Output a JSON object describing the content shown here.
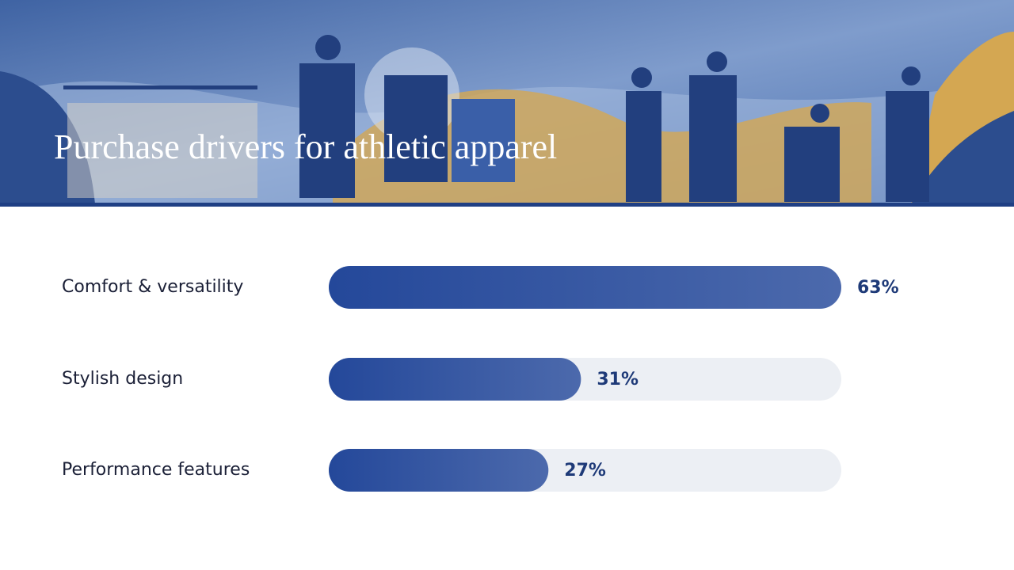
{
  "chart_data": {
    "type": "hbar",
    "title": "Purchase drivers for athletic apparel",
    "categories": [
      "Comfort & versatility",
      "Stylish design",
      "Performance features"
    ],
    "values": [
      63,
      31,
      27
    ],
    "value_labels": [
      "63%",
      "31%",
      "27%"
    ],
    "color": "#24489a"
  }
}
